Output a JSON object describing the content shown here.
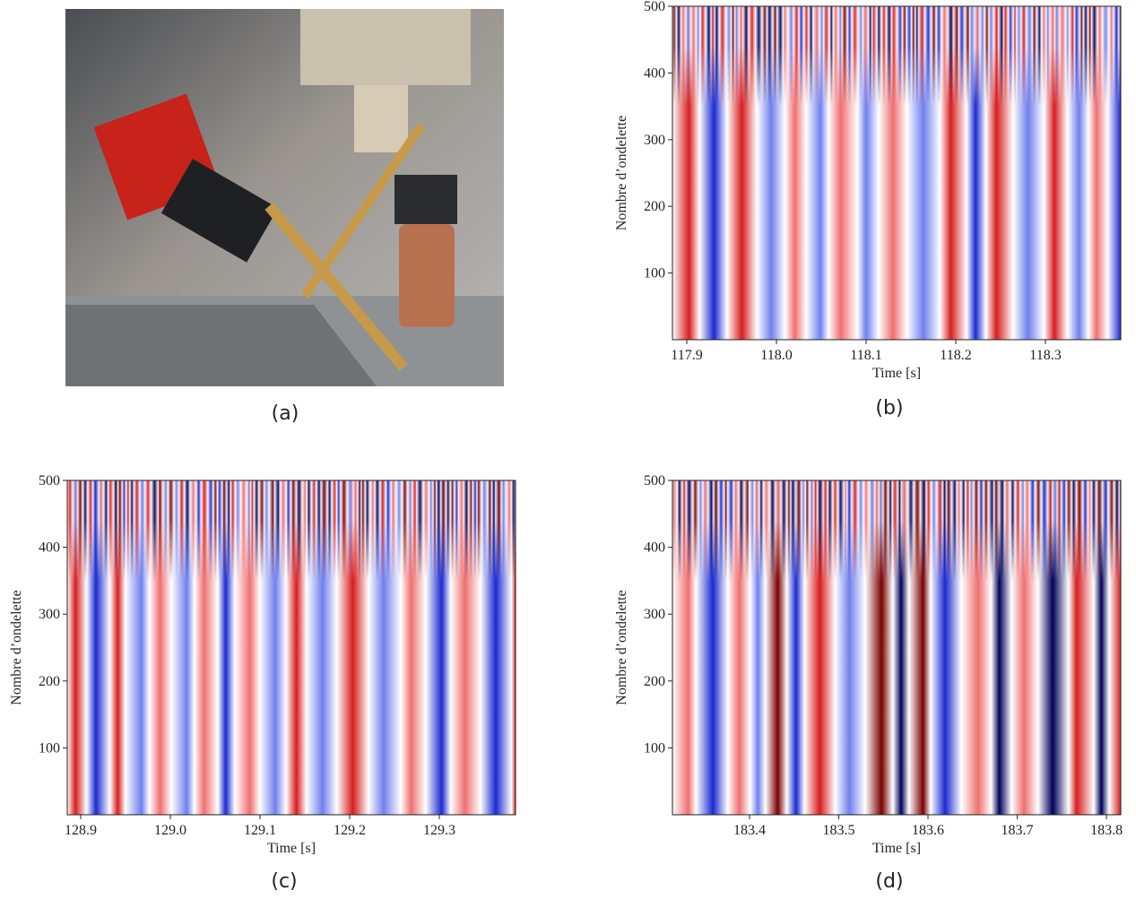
{
  "photo": {
    "caption": "(a)"
  },
  "chart_data": [
    {
      "type": "heatmap",
      "caption": "(b)",
      "xlabel": "Time [s]",
      "ylabel": "Nombre d’ondelette",
      "xlim": [
        117.884,
        118.384
      ],
      "ylim": [
        0,
        500
      ],
      "xticks": [
        117.9,
        {
          "value": 118,
          "label": "118.0"
        },
        118.1,
        118.2,
        118.3
      ],
      "yticks": [
        100,
        200,
        300,
        400,
        500
      ]
    },
    {
      "type": "heatmap",
      "caption": "(c)",
      "xlabel": "Time [s]",
      "ylabel": "Nombre d’ondelette",
      "xlim": [
        128.885,
        129.385
      ],
      "ylim": [
        0,
        500
      ],
      "xticks": [
        128.9,
        {
          "value": 129,
          "label": "129.0"
        },
        129.1,
        129.2,
        129.3
      ],
      "yticks": [
        100,
        200,
        300,
        400,
        500
      ]
    },
    {
      "type": "heatmap",
      "caption": "(d)",
      "xlabel": "Time [s]",
      "ylabel": "Nombre d’ondelette",
      "xlim": [
        183.3136,
        183.816
      ],
      "ylim": [
        0,
        500
      ],
      "xticks": [
        183.4,
        183.5,
        183.6,
        183.7,
        183.8
      ],
      "yticks": [
        100,
        200,
        300,
        400,
        500
      ]
    }
  ]
}
